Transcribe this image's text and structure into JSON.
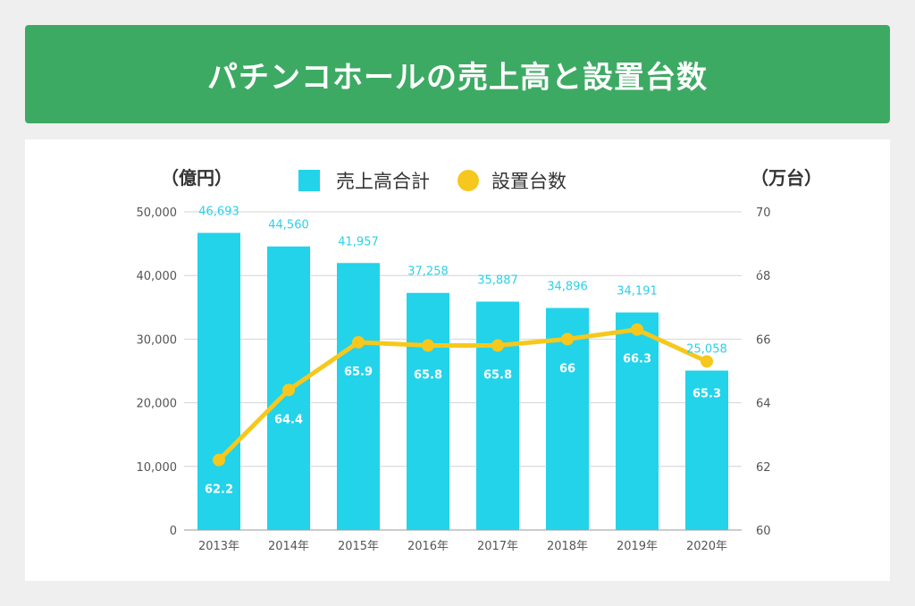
{
  "title": "パチンコホールの売上高と設置台数",
  "colors": {
    "header_bg": "#3daa63",
    "bar": "#22d3ea",
    "line": "#f6c81d",
    "grid": "#d4d4d4"
  },
  "chart_data": {
    "type": "bar+line",
    "categories": [
      "2013年",
      "2014年",
      "2015年",
      "2016年",
      "2017年",
      "2018年",
      "2019年",
      "2020年"
    ],
    "series": [
      {
        "name": "売上高合計",
        "type": "bar",
        "axis": "left",
        "values": [
          46693,
          44560,
          41957,
          37258,
          35887,
          34896,
          34191,
          25058
        ],
        "labels": [
          "46,693",
          "44,560",
          "41,957",
          "37,258",
          "35,887",
          "34,896",
          "34,191",
          "25,058"
        ]
      },
      {
        "name": "設置台数",
        "type": "line",
        "axis": "right",
        "values": [
          62.2,
          64.4,
          65.9,
          65.8,
          65.8,
          66,
          66.3,
          65.3
        ],
        "labels": [
          "62.2",
          "64.4",
          "65.9",
          "65.8",
          "65.8",
          "66",
          "66.3",
          "65.3"
        ]
      }
    ],
    "left_axis": {
      "unit": "（億円）",
      "ylim": [
        0,
        50000
      ],
      "ticks": [
        "0",
        "10,000",
        "20,000",
        "30,000",
        "40,000",
        "50,000"
      ]
    },
    "right_axis": {
      "unit": "（万台）",
      "ylim": [
        60,
        70
      ],
      "ticks": [
        "60",
        "62",
        "64",
        "66",
        "ó8",
        "70"
      ]
    },
    "legend": [
      "売上高合計",
      "設置台数"
    ],
    "grid": true
  }
}
